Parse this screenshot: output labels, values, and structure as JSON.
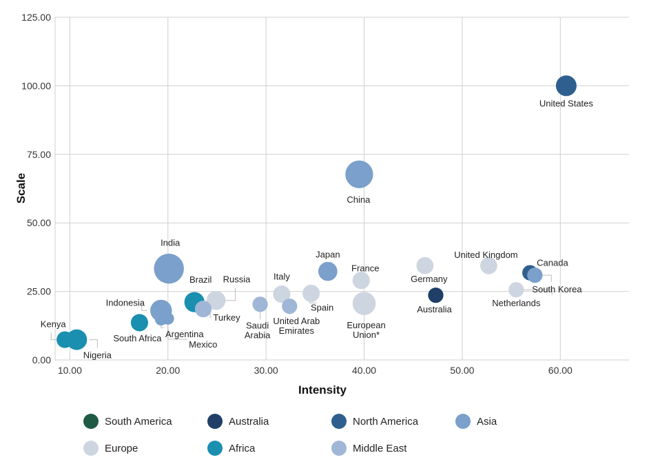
{
  "chart_data": {
    "type": "scatter",
    "subtype": "bubble",
    "title": "",
    "xlabel": "Intensity",
    "ylabel": "Scale",
    "xlim": [
      8.5,
      67
    ],
    "ylim": [
      0,
      125
    ],
    "x_ticks": [
      "10.00",
      "20.00",
      "30.00",
      "40.00",
      "50.00",
      "60.00"
    ],
    "y_ticks": [
      "0.00",
      "25.00",
      "50.00",
      "75.00",
      "100.00",
      "125.00"
    ],
    "grid": true,
    "legend": {
      "placement": "bottom",
      "entries": [
        {
          "name": "South America",
          "color": "#1f5a45"
        },
        {
          "name": "Australia",
          "color": "#1f3f66"
        },
        {
          "name": "North America",
          "color": "#2e5f8e"
        },
        {
          "name": "Asia",
          "color": "#7aa0cb"
        },
        {
          "name": "Europe",
          "color": "#cdd5e0"
        },
        {
          "name": "Africa",
          "color": "#1a8fb0"
        },
        {
          "name": "Middle East",
          "color": "#9fb6d6"
        }
      ]
    },
    "series": [
      {
        "name": "United States",
        "region": "North America",
        "x": 60.6,
        "y": 100,
        "size": 1.0
      },
      {
        "name": "China",
        "region": "Asia",
        "x": 39.5,
        "y": 67.7,
        "size": 1.8
      },
      {
        "name": "India",
        "region": "Asia",
        "x": 20.1,
        "y": 33.3,
        "size": 2.1
      },
      {
        "name": "Japan",
        "region": "Asia",
        "x": 36.3,
        "y": 32.3,
        "size": 0.85
      },
      {
        "name": "France",
        "region": "Europe",
        "x": 39.7,
        "y": 29.0,
        "size": 0.7
      },
      {
        "name": "Germany",
        "region": "Europe",
        "x": 46.2,
        "y": 34.4,
        "size": 0.68
      },
      {
        "name": "United Kingdom",
        "region": "Europe",
        "x": 52.7,
        "y": 34.4,
        "size": 0.68
      },
      {
        "name": "Canada",
        "region": "North America",
        "x": 56.9,
        "y": 31.8,
        "size": 0.55
      },
      {
        "name": "South Korea",
        "region": "Asia",
        "x": 57.4,
        "y": 30.9,
        "size": 0.55
      },
      {
        "name": "Netherlands",
        "region": "Europe",
        "x": 55.5,
        "y": 25.6,
        "size": 0.55
      },
      {
        "name": "Australia",
        "region": "Australia",
        "x": 47.3,
        "y": 23.6,
        "size": 0.55
      },
      {
        "name": "European Union*",
        "region": "Europe",
        "x": 40.0,
        "y": 20.6,
        "size": 1.25
      },
      {
        "name": "Italy",
        "region": "Europe",
        "x": 31.6,
        "y": 24.0,
        "size": 0.7
      },
      {
        "name": "Spain",
        "region": "Europe",
        "x": 34.6,
        "y": 24.3,
        "size": 0.7
      },
      {
        "name": "United Arab Emirates",
        "region": "Middle East",
        "x": 32.4,
        "y": 19.6,
        "size": 0.55
      },
      {
        "name": "Saudi Arabia",
        "region": "Middle East",
        "x": 29.4,
        "y": 20.3,
        "size": 0.55
      },
      {
        "name": "Russia",
        "region": "Europe",
        "x": 24.9,
        "y": 21.7,
        "size": 0.85
      },
      {
        "name": "Turkey",
        "region": "Middle East",
        "x": 23.6,
        "y": 18.6,
        "size": 0.65
      },
      {
        "name": "Brazil",
        "region": "Africa",
        "x": 22.7,
        "y": 21.1,
        "size": 0.95
      },
      {
        "name": "Indonesia",
        "region": "Asia",
        "x": 19.3,
        "y": 18.0,
        "size": 1.1
      },
      {
        "name": "Argentina",
        "region": "Asia",
        "x": 19.3,
        "y": 14.8,
        "size": 0.35
      },
      {
        "name": "Mexico",
        "region": "Asia",
        "x": 20.0,
        "y": 15.1,
        "size": 0.35
      },
      {
        "name": "South Africa",
        "region": "Africa",
        "x": 17.1,
        "y": 13.6,
        "size": 0.7
      },
      {
        "name": "Kenya",
        "region": "Africa",
        "x": 9.5,
        "y": 7.4,
        "size": 0.65
      },
      {
        "name": "Nigeria",
        "region": "Africa",
        "x": 10.7,
        "y": 7.4,
        "size": 1.0
      }
    ],
    "label_names": {
      "Saudi Arabia": [
        "Saudi",
        "Arabia"
      ],
      "United Arab Emirates": [
        "United Arab",
        "Emirates"
      ],
      "European Union*": [
        "European",
        "Union*"
      ]
    }
  }
}
